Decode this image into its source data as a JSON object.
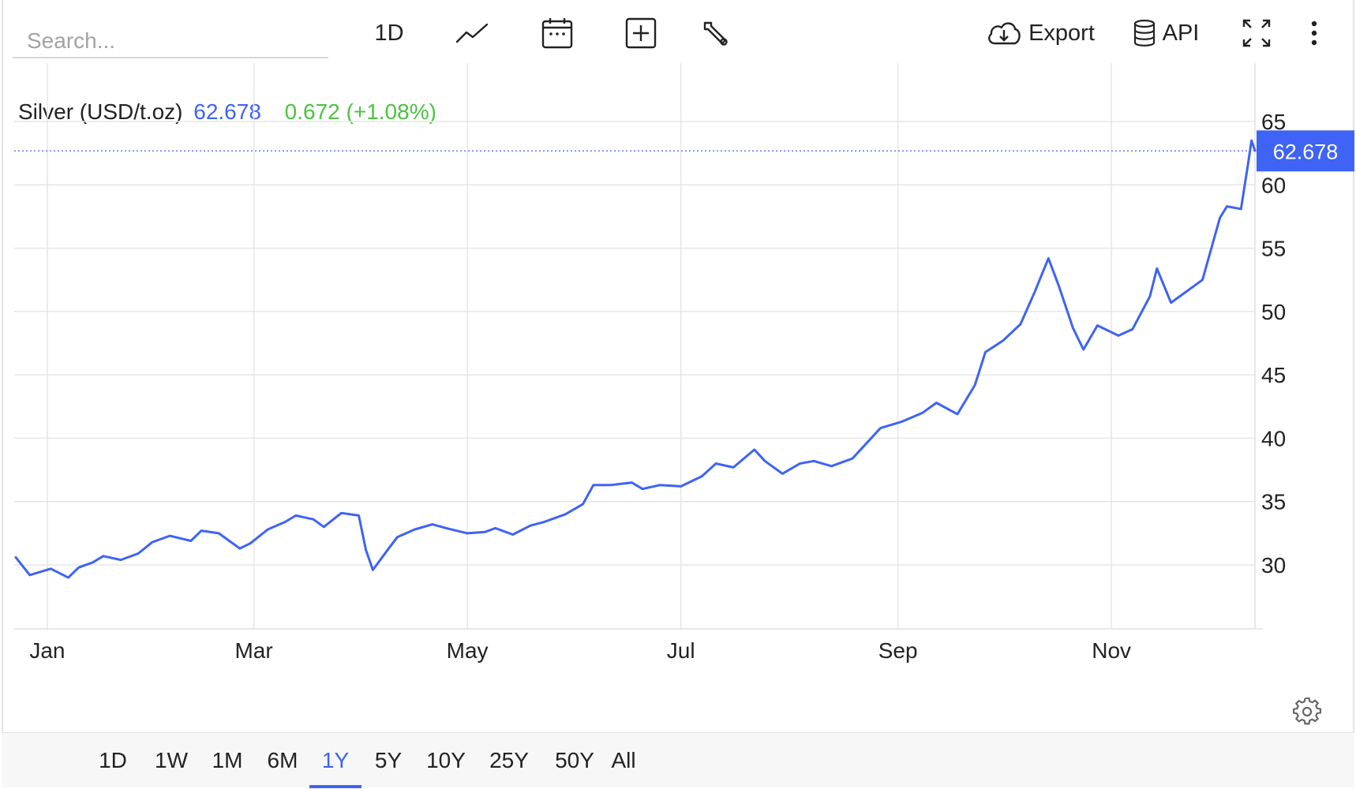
{
  "toolbar": {
    "search_placeholder": "Search...",
    "interval_label": "1D",
    "icons": [
      "line-chart-icon",
      "calendar-icon",
      "add-box-icon",
      "wrench-icon",
      "cloud-download-icon",
      "database-icon",
      "fullscreen-icon",
      "more-vertical-icon"
    ],
    "export_label": "Export",
    "api_label": "API"
  },
  "legend": {
    "name": "Silver (USD/t.oz)",
    "price": "62.678",
    "change": "0.672 (+1.08%)"
  },
  "colors": {
    "line": "#3e63f5",
    "price_text": "#3e63f5",
    "change_text": "#4cc33f",
    "grid": "#e6e6e6",
    "active_range": "#3e63f5"
  },
  "ranges": [
    {
      "label": "1D",
      "active": false
    },
    {
      "label": "1W",
      "active": false
    },
    {
      "label": "1M",
      "active": false
    },
    {
      "label": "6M",
      "active": false
    },
    {
      "label": "1Y",
      "active": true
    },
    {
      "label": "5Y",
      "active": false
    },
    {
      "label": "10Y",
      "active": false
    },
    {
      "label": "25Y",
      "active": false
    },
    {
      "label": "50Y",
      "active": false
    },
    {
      "label": "All",
      "active": false
    }
  ],
  "chart_data": {
    "type": "line",
    "title": "",
    "xlabel": "",
    "ylabel": "",
    "x_ticks": [
      "Jan",
      "Mar",
      "May",
      "Jul",
      "Sep",
      "Nov"
    ],
    "y_ticks": [
      30,
      35,
      40,
      45,
      50,
      55,
      60,
      65
    ],
    "ylim": [
      25,
      65.5
    ],
    "grid": true,
    "last_value_label": "62.678",
    "last_value": 62.678,
    "series": [
      {
        "name": "Silver (USD/t.oz)",
        "x": [
          "2024-12-23",
          "2024-12-27",
          "2025-01-02",
          "2025-01-07",
          "2025-01-10",
          "2025-01-14",
          "2025-01-17",
          "2025-01-22",
          "2025-01-27",
          "2025-01-31",
          "2025-02-05",
          "2025-02-11",
          "2025-02-14",
          "2025-02-19",
          "2025-02-25",
          "2025-02-28",
          "2025-03-05",
          "2025-03-10",
          "2025-03-13",
          "2025-03-18",
          "2025-03-21",
          "2025-03-26",
          "2025-03-31",
          "2025-04-02",
          "2025-04-04",
          "2025-04-08",
          "2025-04-11",
          "2025-04-16",
          "2025-04-21",
          "2025-04-25",
          "2025-05-01",
          "2025-05-06",
          "2025-05-09",
          "2025-05-14",
          "2025-05-19",
          "2025-05-23",
          "2025-05-29",
          "2025-06-03",
          "2025-06-06",
          "2025-06-11",
          "2025-06-17",
          "2025-06-20",
          "2025-06-25",
          "2025-07-01",
          "2025-07-07",
          "2025-07-11",
          "2025-07-16",
          "2025-07-22",
          "2025-07-25",
          "2025-07-30",
          "2025-08-04",
          "2025-08-08",
          "2025-08-13",
          "2025-08-19",
          "2025-08-22",
          "2025-08-27",
          "2025-09-02",
          "2025-09-08",
          "2025-09-12",
          "2025-09-18",
          "2025-09-23",
          "2025-09-26",
          "2025-10-01",
          "2025-10-06",
          "2025-10-10",
          "2025-10-14",
          "2025-10-17",
          "2025-10-21",
          "2025-10-24",
          "2025-10-28",
          "2025-11-03",
          "2025-11-07",
          "2025-11-12",
          "2025-11-14",
          "2025-11-18",
          "2025-11-21",
          "2025-11-27",
          "2025-12-02",
          "2025-12-04",
          "2025-12-08",
          "2025-12-10",
          "2025-12-11",
          "2025-12-12"
        ],
        "y": [
          30.6,
          29.2,
          29.7,
          29.0,
          29.8,
          30.2,
          30.7,
          30.4,
          30.9,
          31.8,
          32.3,
          31.9,
          32.7,
          32.5,
          31.3,
          31.7,
          32.8,
          33.4,
          33.9,
          33.6,
          33.0,
          34.1,
          33.9,
          31.2,
          29.6,
          31.1,
          32.2,
          32.8,
          33.2,
          32.9,
          32.5,
          32.6,
          32.9,
          32.4,
          33.1,
          33.4,
          34.0,
          34.8,
          36.3,
          36.3,
          36.5,
          36.0,
          36.3,
          36.2,
          37.0,
          38.0,
          37.7,
          39.1,
          38.2,
          37.2,
          38.0,
          38.2,
          37.8,
          38.4,
          39.3,
          40.8,
          41.3,
          42.0,
          42.8,
          41.9,
          44.2,
          46.8,
          47.7,
          49.0,
          51.5,
          54.2,
          52.0,
          48.7,
          47.0,
          48.9,
          48.1,
          48.6,
          51.2,
          53.4,
          50.7,
          51.3,
          52.5,
          57.4,
          58.3,
          58.1,
          61.6,
          63.5,
          62.7
        ]
      }
    ]
  }
}
